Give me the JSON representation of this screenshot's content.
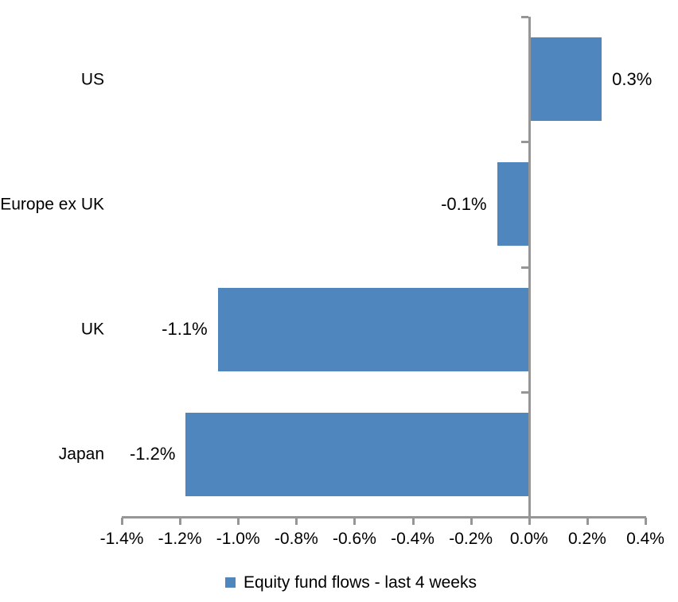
{
  "chart_data": {
    "type": "bar",
    "orientation": "horizontal",
    "title": "",
    "categories": [
      "US",
      "Europe ex UK",
      "UK",
      "Japan"
    ],
    "series": [
      {
        "name": "Equity fund flows - last 4 weeks",
        "values_pct": [
          0.3,
          -0.1,
          -1.1,
          -1.2
        ],
        "value_labels": [
          "0.3%",
          "-0.1%",
          "-1.1%",
          "-1.2%"
        ],
        "bar_lengths_pct_est": [
          0.25,
          -0.11,
          -1.07,
          -1.18
        ]
      }
    ],
    "x_axis": {
      "min_pct": -1.4,
      "max_pct": 0.4,
      "tick_step_pct": 0.2,
      "tick_labels": [
        "-1.4%",
        "-1.2%",
        "-1.0%",
        "-0.8%",
        "-0.6%",
        "-0.4%",
        "-0.2%",
        "0.0%",
        "0.2%",
        "0.4%"
      ]
    },
    "legend": {
      "position": "bottom"
    },
    "grid": false,
    "colors": {
      "bar": "#4F86BD",
      "axis": "#969696",
      "text": "#000000",
      "background": "#FFFFFF"
    }
  }
}
